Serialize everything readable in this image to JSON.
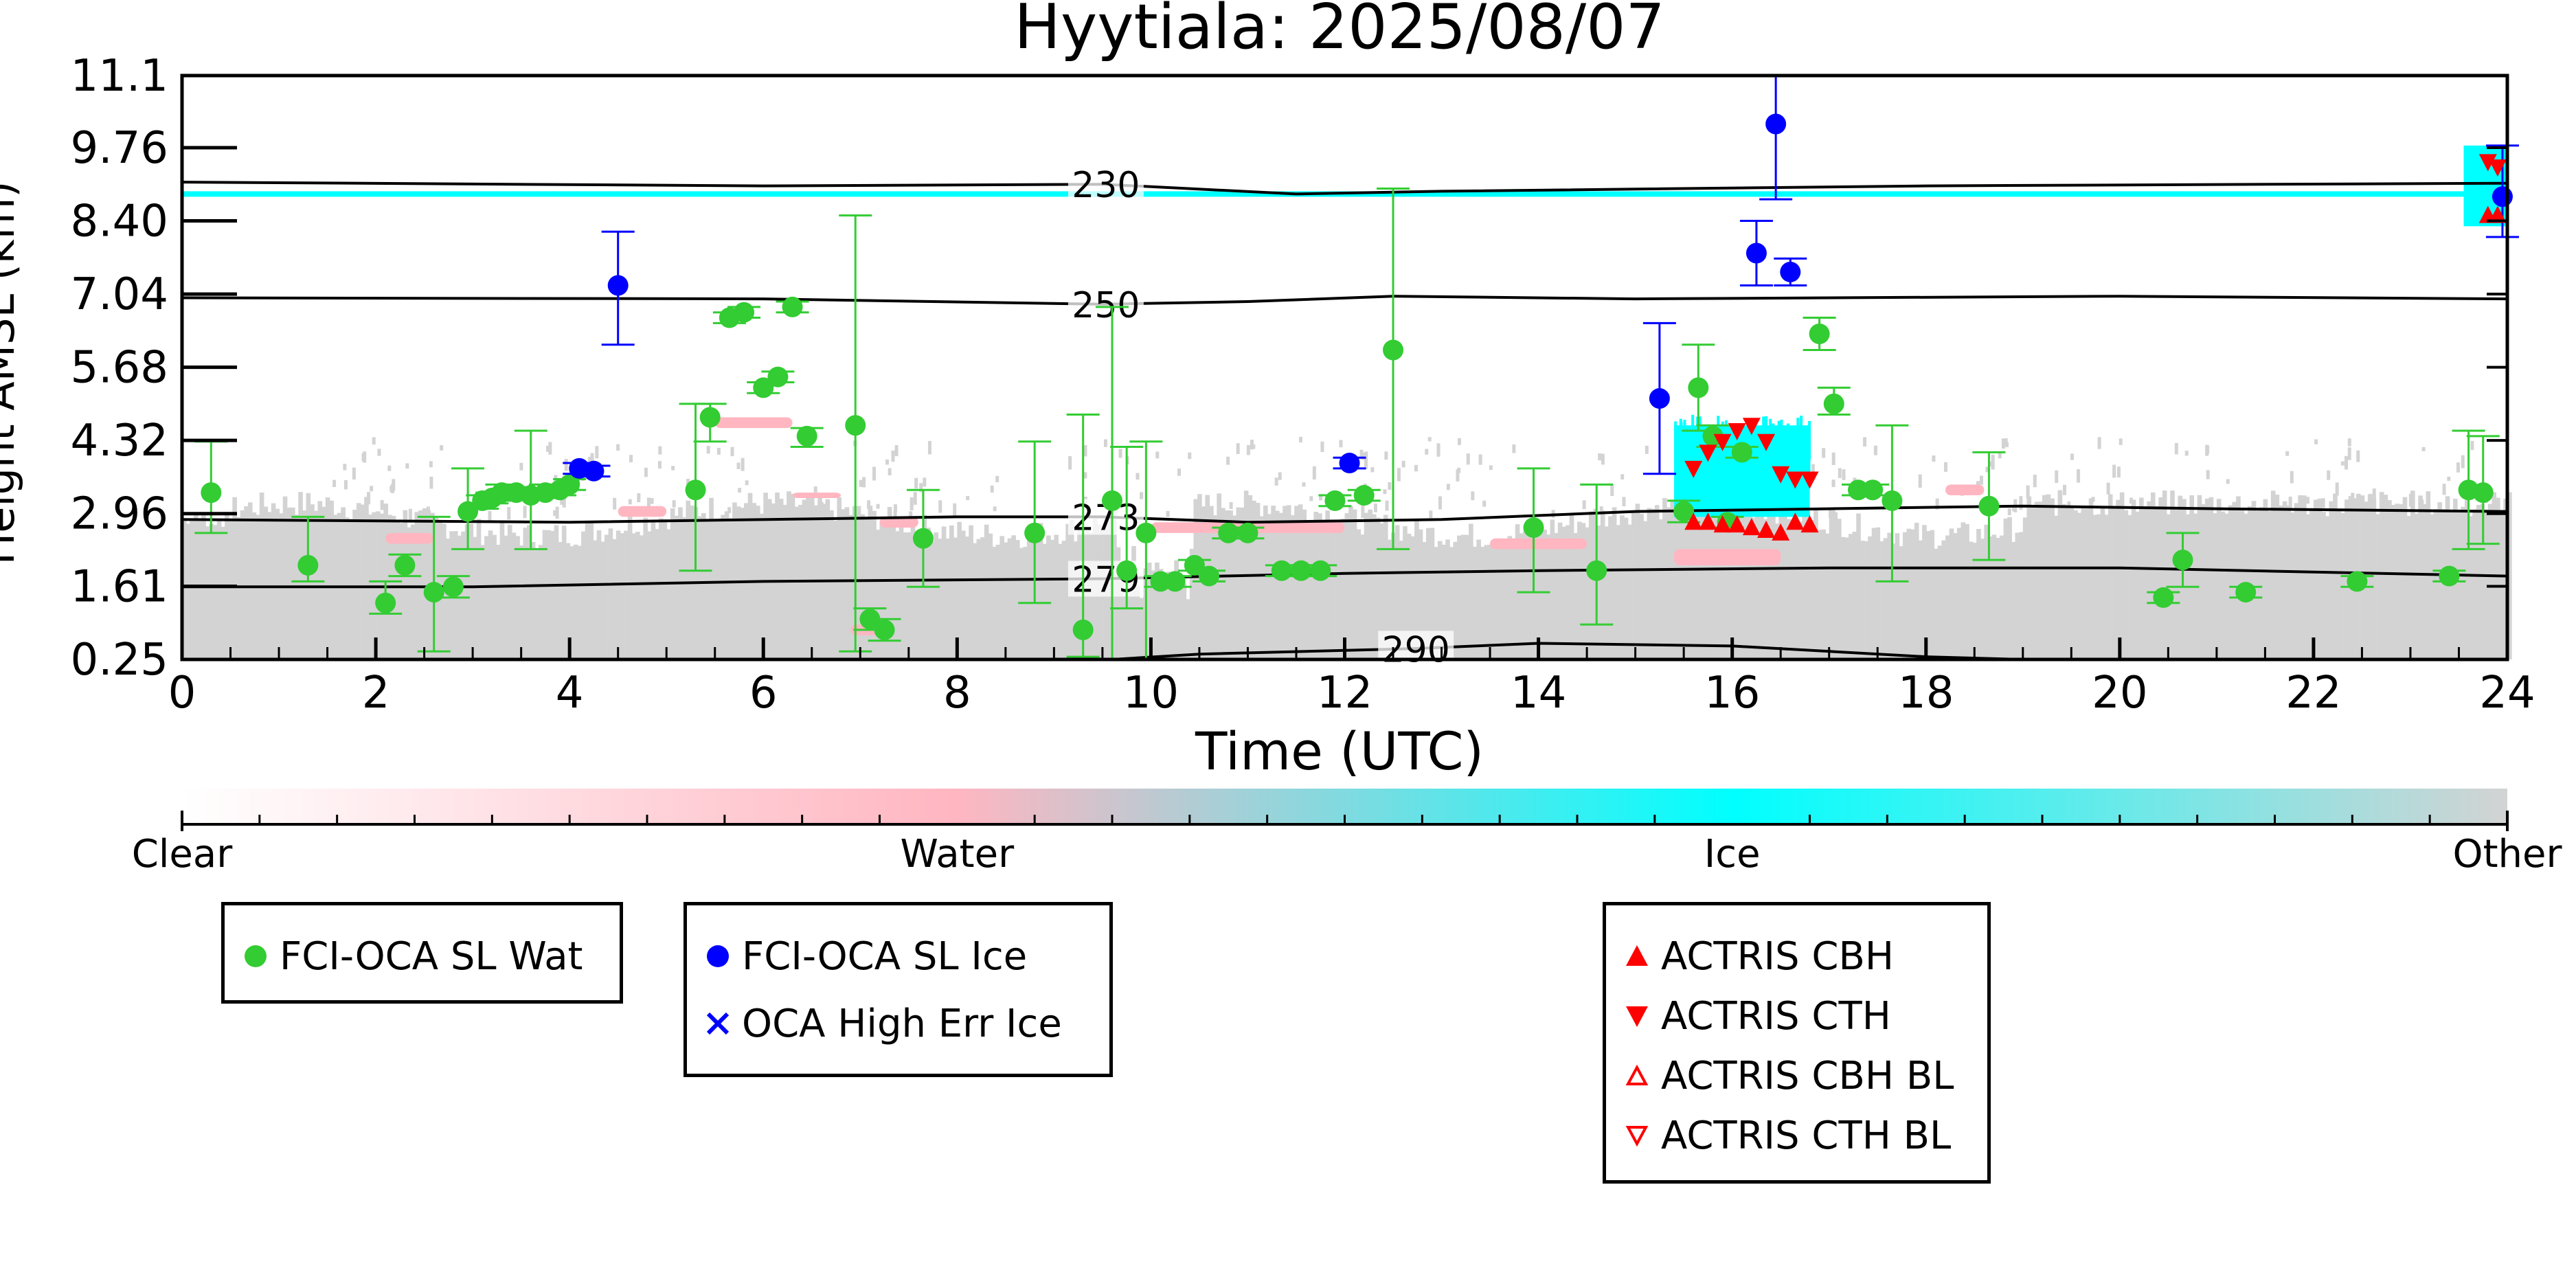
{
  "chart_data": {
    "type": "scatter",
    "title": "Hyytiala: 2025/08/07",
    "xlabel": "Time (UTC)",
    "ylabel": "Height AMSL (km)",
    "xlim": [
      0,
      24
    ],
    "ylim": [
      0.25,
      11.1
    ],
    "x_ticks": [
      0,
      2,
      4,
      6,
      8,
      10,
      12,
      14,
      16,
      18,
      20,
      22,
      24
    ],
    "y_ticks": [
      "0.25",
      "1.61",
      "2.96",
      "4.32",
      "5.68",
      "7.04",
      "8.40",
      "9.76",
      "11.1"
    ],
    "colorbar": {
      "labels": [
        "Clear",
        "Water",
        "Ice",
        "Other"
      ],
      "colors": [
        "#ffffff",
        "#ffb6c1",
        "#00ffff",
        "#d3d3d3"
      ]
    },
    "contours": [
      {
        "label": "230",
        "label_x": 9.5,
        "points": [
          [
            0,
            9.12
          ],
          [
            6,
            9.05
          ],
          [
            9.5,
            9.08
          ],
          [
            11.5,
            8.9
          ],
          [
            13,
            8.95
          ],
          [
            18,
            9.05
          ],
          [
            24,
            9.1
          ]
        ]
      },
      {
        "label": "250",
        "label_x": 9.5,
        "points": [
          [
            0,
            6.97
          ],
          [
            6,
            6.95
          ],
          [
            9.5,
            6.85
          ],
          [
            11,
            6.9
          ],
          [
            12.5,
            7.0
          ],
          [
            15,
            6.95
          ],
          [
            20,
            7.0
          ],
          [
            24,
            6.95
          ]
        ]
      },
      {
        "label": "273",
        "label_x": 9.5,
        "points": [
          [
            0,
            2.85
          ],
          [
            4,
            2.8
          ],
          [
            8,
            2.9
          ],
          [
            9.5,
            2.9
          ],
          [
            11,
            2.8
          ],
          [
            13,
            2.85
          ],
          [
            15,
            3.0
          ],
          [
            17,
            3.05
          ],
          [
            19,
            3.1
          ],
          [
            21,
            3.05
          ],
          [
            24,
            3.0
          ]
        ]
      },
      {
        "label": "279",
        "label_x": 9.5,
        "points": [
          [
            0,
            1.6
          ],
          [
            3,
            1.6
          ],
          [
            6,
            1.7
          ],
          [
            9.5,
            1.75
          ],
          [
            12,
            1.85
          ],
          [
            14,
            1.9
          ],
          [
            17,
            1.95
          ],
          [
            20,
            1.95
          ],
          [
            24,
            1.8
          ]
        ]
      },
      {
        "label": "290",
        "label_x": 12.7,
        "points": [
          [
            9.6,
            0.25
          ],
          [
            10.5,
            0.35
          ],
          [
            12.7,
            0.45
          ],
          [
            14,
            0.55
          ],
          [
            16,
            0.5
          ],
          [
            18,
            0.3
          ],
          [
            19,
            0.25
          ]
        ]
      }
    ],
    "series": [
      {
        "name": "FCI-OCA SL Wat",
        "marker": "circle",
        "color": "#33cc33",
        "points": [
          [
            0.3,
            3.35,
            2.6,
            4.3
          ],
          [
            1.3,
            2.0,
            1.7,
            2.9
          ],
          [
            2.1,
            1.3,
            1.1,
            1.7
          ],
          [
            2.3,
            2.0,
            1.8,
            2.2
          ],
          [
            2.6,
            1.5,
            0.4,
            2.9
          ],
          [
            2.8,
            1.6,
            1.4,
            1.8
          ],
          [
            2.95,
            3.0,
            2.3,
            3.8
          ],
          [
            3.1,
            3.2,
            3.05,
            3.3
          ],
          [
            3.2,
            3.25,
            3.15,
            3.35
          ],
          [
            3.3,
            3.35,
            3.2,
            3.5
          ],
          [
            3.45,
            3.35,
            3.25,
            3.45
          ],
          [
            3.6,
            3.3,
            2.3,
            4.5
          ],
          [
            3.75,
            3.35,
            3.25,
            3.5
          ],
          [
            3.9,
            3.4,
            3.3,
            3.5
          ],
          [
            4.0,
            3.5,
            3.4,
            3.6
          ],
          [
            5.3,
            3.4,
            1.9,
            5.0
          ],
          [
            5.45,
            4.75,
            4.3,
            5.0
          ],
          [
            5.65,
            6.6,
            6.5,
            6.7
          ],
          [
            5.8,
            6.7,
            6.6,
            6.8
          ],
          [
            6.0,
            5.3,
            5.2,
            5.4
          ],
          [
            6.15,
            5.5,
            5.4,
            5.6
          ],
          [
            6.3,
            6.8,
            6.7,
            6.9
          ],
          [
            6.45,
            4.4,
            4.2,
            4.55
          ],
          [
            6.95,
            4.6,
            0.4,
            8.5
          ],
          [
            7.1,
            1.0,
            0.8,
            1.2
          ],
          [
            7.25,
            0.8,
            0.6,
            1.0
          ],
          [
            7.65,
            2.5,
            1.6,
            3.4
          ],
          [
            8.8,
            2.6,
            1.3,
            4.3
          ],
          [
            9.3,
            0.8,
            0.3,
            4.8
          ],
          [
            9.6,
            3.2,
            0.25,
            6.8
          ],
          [
            9.75,
            1.9,
            1.2,
            4.2
          ],
          [
            9.95,
            2.6,
            0.25,
            4.3
          ],
          [
            10.1,
            1.7,
            1.6,
            1.8
          ],
          [
            10.25,
            1.7,
            1.6,
            1.8
          ],
          [
            10.45,
            2.0,
            1.9,
            2.1
          ],
          [
            10.6,
            1.8,
            1.7,
            1.9
          ],
          [
            10.8,
            2.6,
            2.5,
            2.7
          ],
          [
            11.0,
            2.6,
            2.5,
            2.7
          ],
          [
            11.35,
            1.9,
            1.8,
            2.0
          ],
          [
            11.55,
            1.9,
            1.8,
            2.0
          ],
          [
            11.75,
            1.9,
            1.8,
            2.0
          ],
          [
            11.9,
            3.2,
            3.1,
            3.3
          ],
          [
            12.2,
            3.3,
            3.2,
            3.4
          ],
          [
            12.5,
            6.0,
            2.3,
            9.0
          ],
          [
            13.95,
            2.7,
            1.5,
            3.8
          ],
          [
            14.6,
            1.9,
            0.9,
            3.5
          ],
          [
            15.5,
            3.0,
            2.8,
            3.2
          ],
          [
            15.65,
            5.3,
            4.5,
            6.1
          ],
          [
            15.8,
            4.4,
            4.2,
            4.6
          ],
          [
            15.95,
            2.8,
            2.7,
            2.9
          ],
          [
            16.1,
            4.1,
            4.0,
            4.2
          ],
          [
            16.9,
            6.3,
            6.0,
            6.6
          ],
          [
            17.05,
            5.0,
            4.8,
            5.3
          ],
          [
            17.3,
            3.4,
            3.3,
            3.5
          ],
          [
            17.45,
            3.4,
            3.3,
            3.5
          ],
          [
            17.65,
            3.2,
            1.7,
            4.6
          ],
          [
            18.65,
            3.1,
            2.1,
            4.1
          ],
          [
            20.45,
            1.4,
            1.3,
            1.5
          ],
          [
            20.65,
            2.1,
            1.6,
            2.6
          ],
          [
            21.3,
            1.5,
            1.4,
            1.6
          ],
          [
            22.45,
            1.7,
            1.6,
            1.8
          ],
          [
            23.4,
            1.8,
            1.7,
            1.9
          ],
          [
            23.6,
            3.4,
            2.3,
            4.5
          ],
          [
            23.75,
            3.35,
            2.4,
            4.4
          ]
        ]
      },
      {
        "name": "FCI-OCA SL Ice",
        "marker": "circle",
        "color": "#0000ff",
        "points": [
          [
            4.1,
            3.8,
            3.7,
            3.9
          ],
          [
            4.25,
            3.75,
            3.65,
            3.85
          ],
          [
            4.5,
            7.2,
            6.1,
            8.2
          ],
          [
            12.05,
            3.9,
            3.8,
            4.0
          ],
          [
            15.25,
            5.1,
            3.7,
            6.5
          ],
          [
            16.25,
            7.8,
            7.2,
            8.4
          ],
          [
            16.45,
            10.2,
            8.8,
            11.1
          ],
          [
            16.6,
            7.45,
            7.2,
            7.7
          ],
          [
            23.95,
            8.85,
            8.1,
            9.8
          ]
        ]
      },
      {
        "name": "OCA High Err Ice",
        "marker": "x",
        "color": "#0000ff",
        "points": []
      },
      {
        "name": "ACTRIS CBH",
        "marker": "triangle-up",
        "color": "#ff0000",
        "points": [
          [
            15.6,
            2.8
          ],
          [
            15.75,
            2.8
          ],
          [
            15.9,
            2.75
          ],
          [
            16.05,
            2.75
          ],
          [
            16.2,
            2.7
          ],
          [
            16.35,
            2.65
          ],
          [
            16.5,
            2.6
          ],
          [
            16.65,
            2.8
          ],
          [
            16.8,
            2.75
          ],
          [
            23.8,
            8.5
          ],
          [
            23.9,
            8.5
          ]
        ]
      },
      {
        "name": "ACTRIS CTH",
        "marker": "triangle-down",
        "color": "#ff0000",
        "points": [
          [
            15.6,
            3.8
          ],
          [
            15.75,
            4.1
          ],
          [
            15.9,
            4.3
          ],
          [
            16.05,
            4.5
          ],
          [
            16.2,
            4.6
          ],
          [
            16.35,
            4.3
          ],
          [
            16.5,
            3.7
          ],
          [
            16.65,
            3.6
          ],
          [
            16.8,
            3.6
          ],
          [
            23.8,
            9.5
          ],
          [
            23.9,
            9.4
          ]
        ]
      },
      {
        "name": "ACTRIS CBH BL",
        "marker": "triangle-up-open",
        "color": "#ff0000",
        "points": []
      },
      {
        "name": "ACTRIS CTH BL",
        "marker": "triangle-down-open",
        "color": "#ff0000",
        "points": []
      }
    ],
    "legend_groups": [
      [
        "FCI-OCA SL Wat"
      ],
      [
        "FCI-OCA SL Ice",
        "OCA High Err Ice"
      ],
      [
        "ACTRIS CBH",
        "ACTRIS CTH",
        "ACTRIS CBH BL",
        "ACTRIS CTH BL"
      ]
    ],
    "grid": false
  }
}
